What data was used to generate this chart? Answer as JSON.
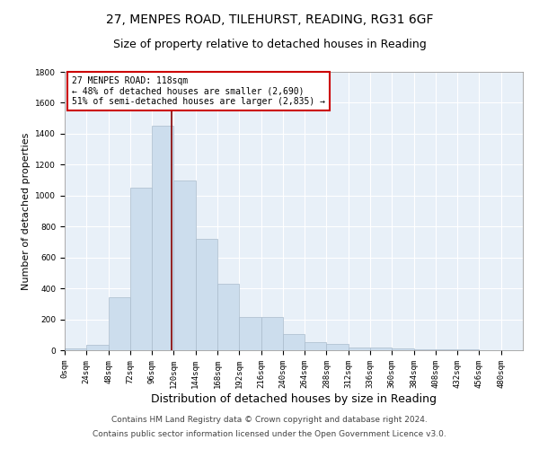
{
  "title1": "27, MENPES ROAD, TILEHURST, READING, RG31 6GF",
  "title2": "Size of property relative to detached houses in Reading",
  "xlabel": "Distribution of detached houses by size in Reading",
  "ylabel": "Number of detached properties",
  "bar_values": [
    10,
    35,
    340,
    1050,
    1450,
    1100,
    720,
    430,
    215,
    215,
    105,
    55,
    40,
    20,
    15,
    10,
    5,
    5,
    3,
    2,
    2
  ],
  "bin_edges": [
    0,
    24,
    48,
    72,
    96,
    120,
    144,
    168,
    192,
    216,
    240,
    264,
    288,
    312,
    336,
    360,
    384,
    408,
    432,
    456,
    480,
    504
  ],
  "tick_labels": [
    "0sqm",
    "24sqm",
    "48sqm",
    "72sqm",
    "96sqm",
    "120sqm",
    "144sqm",
    "168sqm",
    "192sqm",
    "216sqm",
    "240sqm",
    "264sqm",
    "288sqm",
    "312sqm",
    "336sqm",
    "360sqm",
    "384sqm",
    "408sqm",
    "432sqm",
    "456sqm",
    "480sqm"
  ],
  "bar_color": "#ccdded",
  "bar_edge_color": "#aabccc",
  "vline_x": 118,
  "vline_color": "#880000",
  "annotation_title": "27 MENPES ROAD: 118sqm",
  "annotation_line1": "← 48% of detached houses are smaller (2,690)",
  "annotation_line2": "51% of semi-detached houses are larger (2,835) →",
  "annotation_box_color": "#ffffff",
  "annotation_box_edge": "#cc0000",
  "bg_color": "#e8f0f8",
  "ylim": [
    0,
    1800
  ],
  "yticks": [
    0,
    200,
    400,
    600,
    800,
    1000,
    1200,
    1400,
    1600,
    1800
  ],
  "footer1": "Contains HM Land Registry data © Crown copyright and database right 2024.",
  "footer2": "Contains public sector information licensed under the Open Government Licence v3.0.",
  "title1_fontsize": 10,
  "title2_fontsize": 9,
  "annotation_fontsize": 7,
  "ylabel_fontsize": 8,
  "xlabel_fontsize": 9,
  "footer_fontsize": 6.5,
  "tick_fontsize": 6.5
}
